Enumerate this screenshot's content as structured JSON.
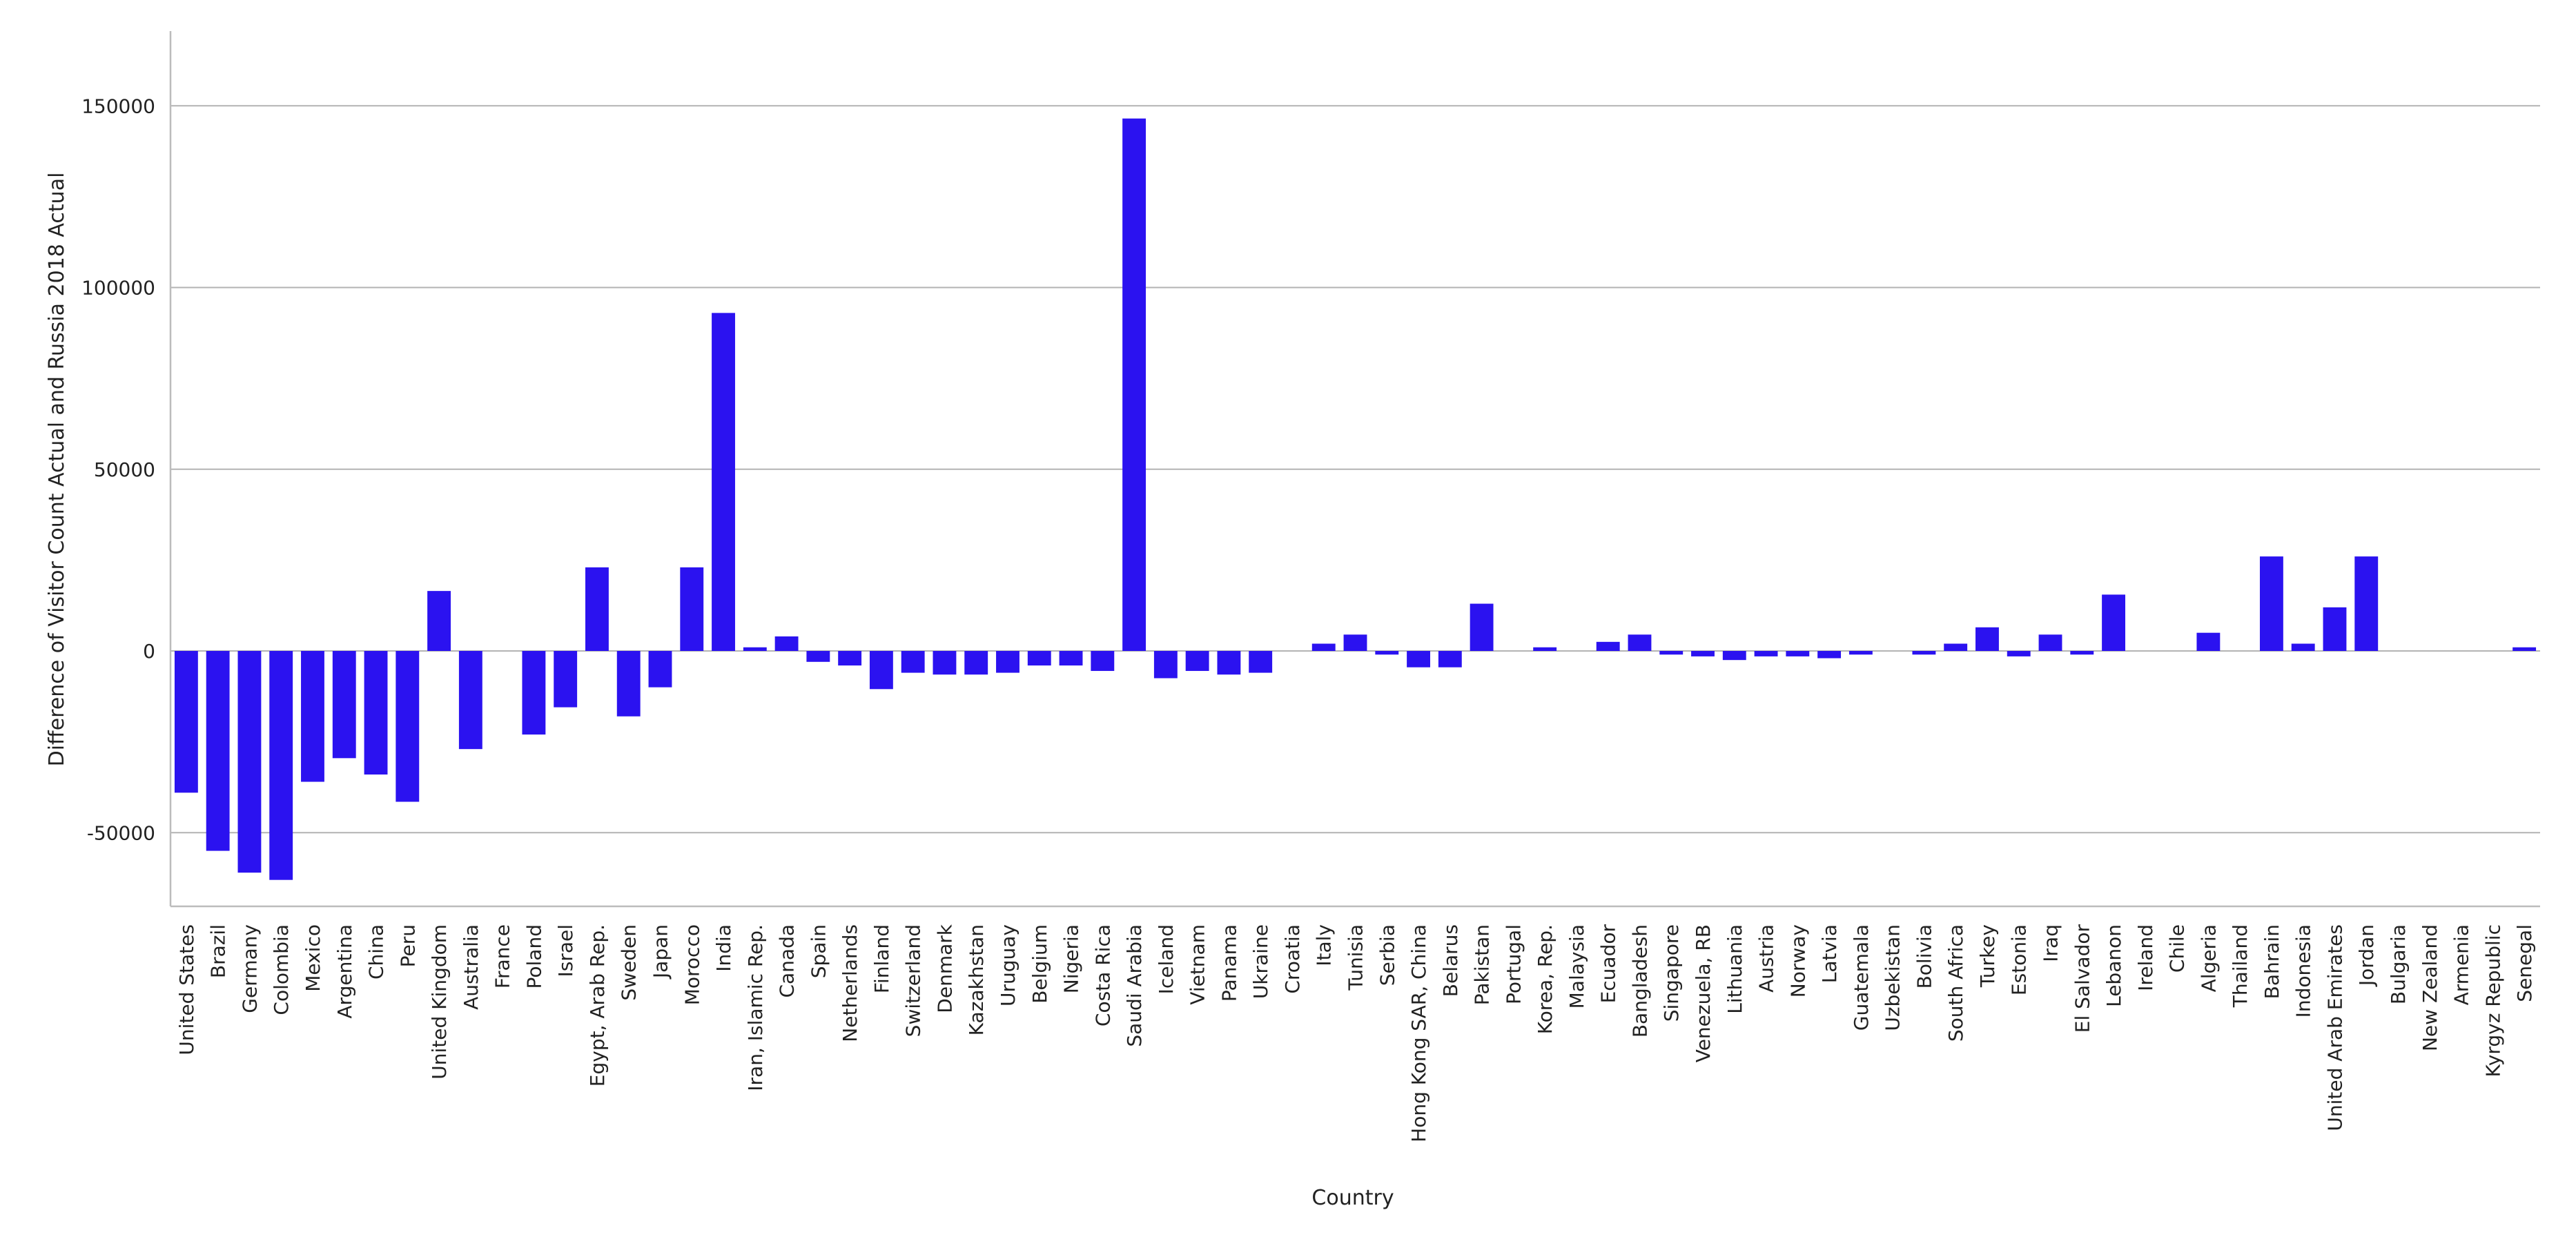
{
  "chart_data": {
    "type": "bar",
    "title": "",
    "xlabel": "Country",
    "ylabel": "Difference of Visitor Count Actual and Russia 2018 Actual",
    "ylim": [
      -70000,
      170000
    ],
    "yticks": [
      -50000,
      0,
      50000,
      100000,
      150000
    ],
    "grid": "horizontal",
    "bar_color": "#2b12f0",
    "categories": [
      "United States",
      "Brazil",
      "Germany",
      "Colombia",
      "Mexico",
      "Argentina",
      "China",
      "Peru",
      "United Kingdom",
      "Australia",
      "France",
      "Poland",
      "Israel",
      "Egypt, Arab Rep.",
      "Sweden",
      "Japan",
      "Morocco",
      "India",
      "Iran, Islamic Rep.",
      "Canada",
      "Spain",
      "Netherlands",
      "Finland",
      "Switzerland",
      "Denmark",
      "Kazakhstan",
      "Uruguay",
      "Belgium",
      "Nigeria",
      "Costa Rica",
      "Saudi Arabia",
      "Iceland",
      "Vietnam",
      "Panama",
      "Ukraine",
      "Croatia",
      "Italy",
      "Tunisia",
      "Serbia",
      "Hong Kong SAR, China",
      "Belarus",
      "Pakistan",
      "Portugal",
      "Korea, Rep.",
      "Malaysia",
      "Ecuador",
      "Bangladesh",
      "Singapore",
      "Venezuela, RB",
      "Lithuania",
      "Austria",
      "Norway",
      "Latvia",
      "Guatemala",
      "Uzbekistan",
      "Bolivia",
      "South Africa",
      "Turkey",
      "Estonia",
      "Iraq",
      "El Salvador",
      "Lebanon",
      "Ireland",
      "Chile",
      "Algeria",
      "Thailand",
      "Bahrain",
      "Indonesia",
      "United Arab Emirates",
      "Jordan",
      "Bulgaria",
      "New Zealand",
      "Armenia",
      "Kyrgyz Republic",
      "Senegal"
    ],
    "values": [
      -39000,
      -55000,
      -61000,
      -63000,
      -36000,
      -29500,
      -34000,
      -41500,
      16500,
      -27000,
      0,
      -23000,
      -15500,
      23000,
      -18000,
      -10000,
      23000,
      93000,
      1000,
      4000,
      -3000,
      -4000,
      -10500,
      -6000,
      -6500,
      -6500,
      -6000,
      -4000,
      -4000,
      -5500,
      146500,
      -7500,
      -5500,
      -6500,
      -6000,
      0,
      2000,
      4500,
      -1000,
      -4500,
      -4500,
      13000,
      0,
      1000,
      0,
      2500,
      4500,
      -1000,
      -1500,
      -2500,
      -1500,
      -1500,
      -2000,
      -1000,
      0,
      -1000,
      2000,
      6500,
      -1500,
      4500,
      -1000,
      15500,
      0,
      0,
      5000,
      0,
      26000,
      2000,
      12000,
      26000,
      0,
      0,
      0,
      0,
      1000
    ]
  }
}
